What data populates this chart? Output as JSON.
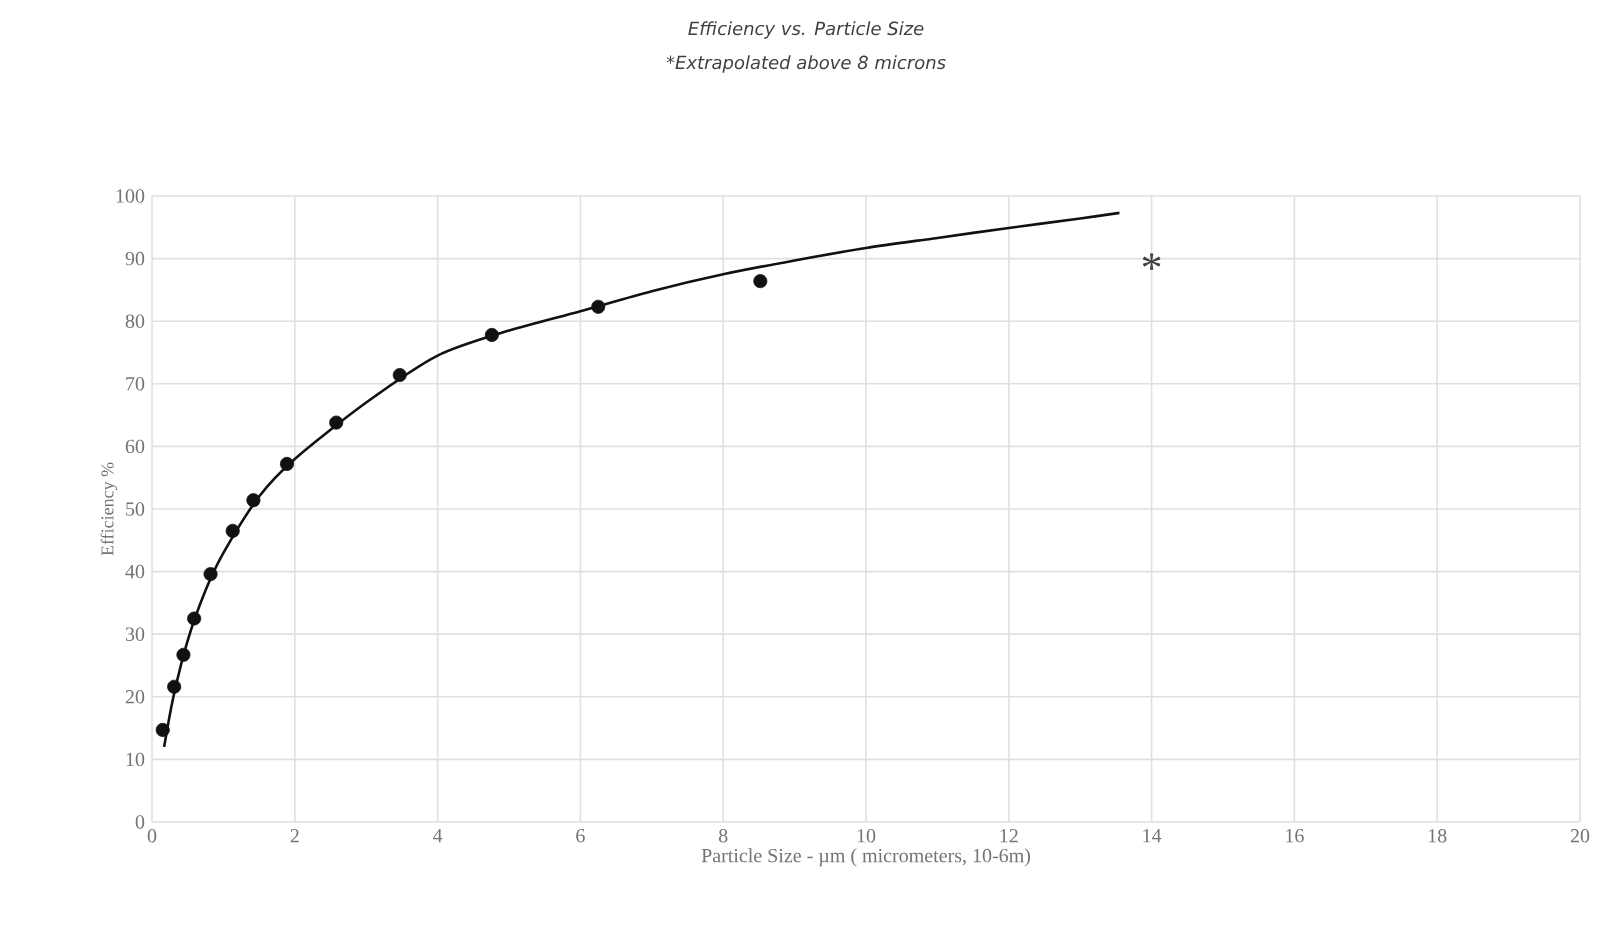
{
  "chart_data": {
    "type": "scatter",
    "title": "Efficiency vs. Particle Size",
    "subtitle": "*Extrapolated above 8 microns",
    "xlabel": "Particle Size - µm ( micrometers, 10-6m)",
    "ylabel": "Efficiency %",
    "series": [
      {
        "color": "#111111",
        "marker": "circle",
        "x": [
          0.15,
          0.31,
          0.44,
          0.59,
          0.82,
          1.13,
          1.42,
          1.89,
          2.58,
          3.47,
          4.76,
          6.25,
          8.52
        ],
        "values": [
          14.7,
          21.6,
          26.7,
          32.5,
          39.6,
          46.5,
          51.4,
          57.2,
          63.8,
          71.4,
          77.8,
          82.3,
          86.4
        ]
      },
      {
        "type": "line",
        "color": "#111111",
        "marker": "none",
        "line_style": "solid",
        "x": [
          0.17,
          0.3,
          0.5,
          0.75,
          1,
          1.5,
          2,
          3,
          4,
          5,
          6,
          7,
          8,
          9,
          10,
          11,
          12,
          13,
          13.55
        ],
        "values": [
          12,
          20,
          29,
          37,
          43,
          52,
          58,
          67,
          74.5,
          78.5,
          81.6,
          84.8,
          87.5,
          89.7,
          91.7,
          93.3,
          94.9,
          96.4,
          97.3
        ]
      }
    ],
    "annotations": [
      "*"
    ],
    "xlim": [
      0,
      20
    ],
    "ylim": [
      0,
      100
    ],
    "xticks": [
      0,
      2,
      4,
      6,
      8,
      10,
      12,
      14,
      16,
      18,
      20
    ],
    "yticks": [
      0,
      10,
      20,
      30,
      40,
      50,
      60,
      70,
      80,
      90,
      100
    ],
    "grid": true
  }
}
